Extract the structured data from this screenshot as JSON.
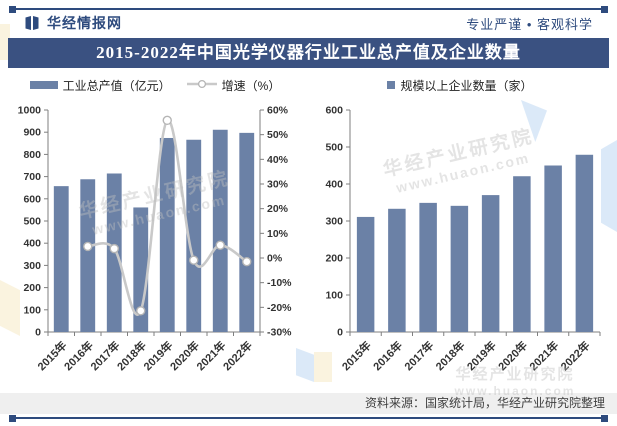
{
  "header": {
    "brand": "华经情报网",
    "slogan": "专业严谨 • 客观科学"
  },
  "title": "2015-2022年中国光学仪器行业工业总产值及企业数量",
  "watermark": {
    "line1": "华经产业研究院",
    "line2": "www.huaon.com"
  },
  "footer": {
    "source": "资料来源：国家统计局，华经产业研究院整理"
  },
  "colors": {
    "bar": "#6B81A6",
    "line": "#C9C9C9",
    "marker_stroke": "#B5B5B5",
    "axis": "#7F7F7F",
    "banner_bg": "#3A5181",
    "brand": "#2E4B7E",
    "footer_bg": "#EFEFEF"
  },
  "chart_data": [
    {
      "type": "bar",
      "name": "output-value",
      "title": "",
      "categories": [
        "2015年",
        "2016年",
        "2017年",
        "2018年",
        "2019年",
        "2020年",
        "2021年",
        "2022年"
      ],
      "series": [
        {
          "name": "工业总产值（亿元）",
          "type": "bar",
          "axis": "left",
          "legend": "bar",
          "values": [
            657,
            688,
            714,
            561,
            874,
            866,
            911,
            897
          ]
        },
        {
          "name": "增速（%）",
          "type": "line",
          "axis": "right",
          "legend": "line",
          "values": [
            null,
            4.7,
            3.8,
            -21.4,
            55.8,
            -0.9,
            5.2,
            -1.5
          ]
        }
      ],
      "left_axis": {
        "min": 0,
        "max": 1000,
        "step": 100,
        "suffix": ""
      },
      "right_axis": {
        "min": -30,
        "max": 60,
        "step": 10,
        "suffix": "%"
      },
      "xlabel": "",
      "ylabel": "",
      "grid": false,
      "legend_position": "top"
    },
    {
      "type": "bar",
      "name": "enterprise-count",
      "title": "",
      "categories": [
        "2015年",
        "2016年",
        "2017年",
        "2018年",
        "2019年",
        "2020年",
        "2021年",
        "2022年"
      ],
      "series": [
        {
          "name": "规模以上企业数量（家）",
          "type": "bar",
          "axis": "left",
          "legend": "square",
          "values": [
            311,
            333,
            349,
            341,
            370,
            421,
            450,
            479
          ]
        }
      ],
      "left_axis": {
        "min": 0,
        "max": 600,
        "step": 100,
        "suffix": ""
      },
      "xlabel": "",
      "ylabel": "",
      "grid": false,
      "legend_position": "top"
    }
  ]
}
